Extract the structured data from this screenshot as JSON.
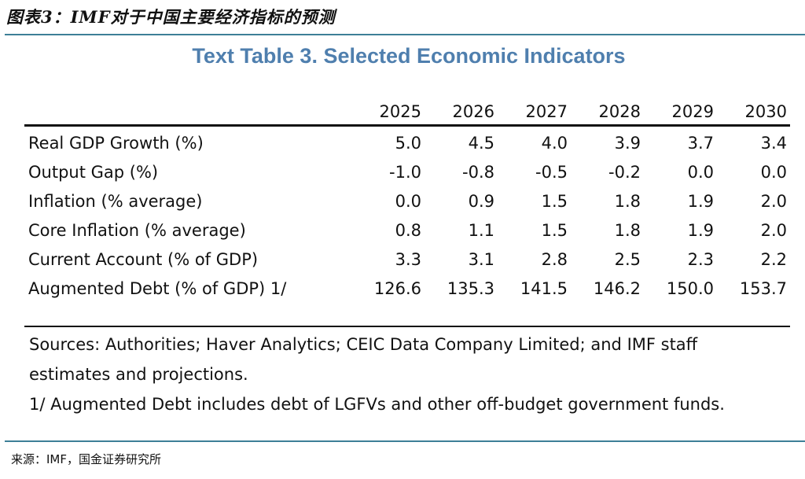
{
  "caption": "图表3：IMF对于中国主要经济指标的预测",
  "title": "Text Table 3. Selected Economic Indicators",
  "years": [
    "2025",
    "2026",
    "2027",
    "2028",
    "2029",
    "2030"
  ],
  "rows": [
    {
      "label": "Real GDP Growth (%)",
      "values": [
        "5.0",
        "4.5",
        "4.0",
        "3.9",
        "3.7",
        "3.4"
      ]
    },
    {
      "label": "Output Gap (%)",
      "values": [
        "-1.0",
        "-0.8",
        "-0.5",
        "-0.2",
        "0.0",
        "0.0"
      ]
    },
    {
      "label": "Inflation (% average)",
      "values": [
        "0.0",
        "0.9",
        "1.5",
        "1.8",
        "1.9",
        "2.0"
      ]
    },
    {
      "label": "Core Inflation (% average)",
      "values": [
        "0.8",
        "1.1",
        "1.5",
        "1.8",
        "1.9",
        "2.0"
      ]
    },
    {
      "label": "Current Account (% of GDP)",
      "values": [
        "3.3",
        "3.1",
        "2.8",
        "2.5",
        "2.3",
        "2.2"
      ]
    },
    {
      "label": "Augmented Debt (% of GDP) 1/",
      "values": [
        "126.6",
        "135.3",
        "141.5",
        "146.2",
        "150.0",
        "153.7"
      ]
    }
  ],
  "notes": [
    "Sources: Authorities; Haver Analytics; CEIC Data Company Limited; and IMF staff",
    "estimates and projections.",
    "1/ Augmented Debt includes debt of LGFVs and other off-budget government funds."
  ],
  "source": "来源：IMF，国金证券研究所"
}
